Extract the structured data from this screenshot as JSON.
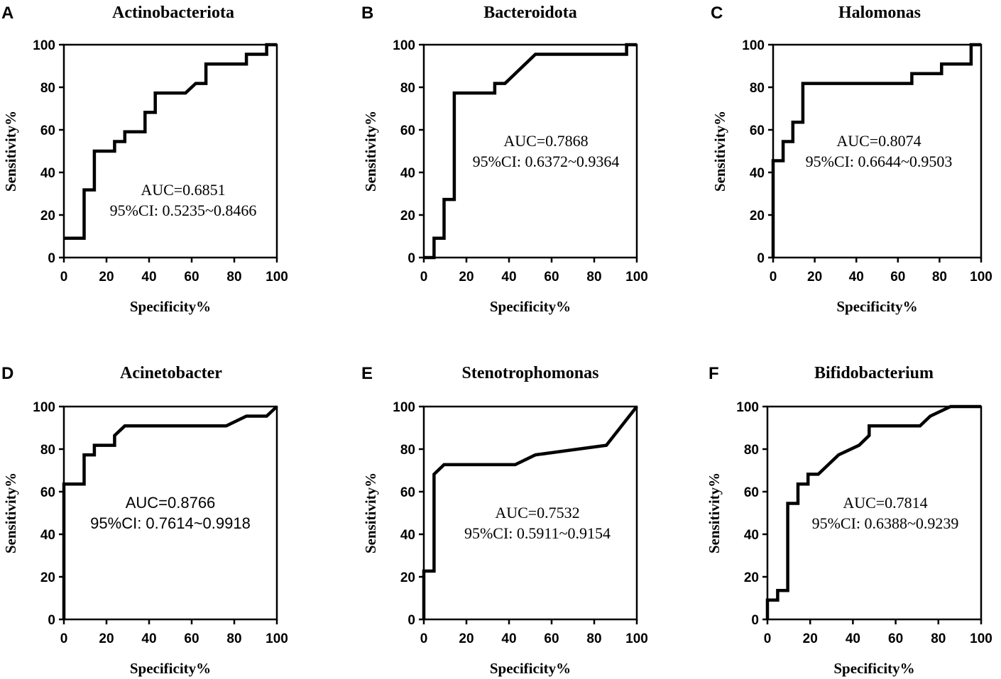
{
  "axis_ticks": [
    "0",
    "20",
    "40",
    "60",
    "80",
    "100"
  ],
  "chart_data": [
    {
      "panel": "A",
      "type": "line",
      "title": "Actinobacteriota",
      "xlabel": "Specificity%",
      "ylabel": "Sensitivity%",
      "xlim": [
        0,
        100
      ],
      "ylim": [
        0,
        100
      ],
      "auc_text": "AUC=0.6851",
      "ci_text": "95%CI: 0.5235~0.8466",
      "annotation_font": "serif",
      "x": [
        0,
        9.5,
        9.5,
        14.3,
        14.3,
        23.8,
        23.8,
        28.6,
        28.6,
        38.1,
        38.1,
        42.9,
        42.9,
        57.1,
        57.1,
        61.9,
        61.9,
        66.7,
        66.7,
        85.7,
        85.7,
        95.2,
        95.2,
        100
      ],
      "y": [
        9.1,
        9.1,
        31.8,
        31.8,
        50,
        50,
        54.5,
        54.5,
        59.1,
        59.1,
        68.2,
        68.2,
        77.3,
        77.3,
        77.3,
        81.8,
        81.8,
        81.8,
        90.9,
        90.9,
        95.5,
        95.5,
        100,
        100
      ]
    },
    {
      "panel": "B",
      "type": "line",
      "title": "Bacteroidota",
      "xlabel": "Specificity%",
      "ylabel": "Sensitivity%",
      "xlim": [
        0,
        100
      ],
      "ylim": [
        0,
        100
      ],
      "auc_text": "AUC=0.7868",
      "ci_text": "95%CI: 0.6372~0.9364",
      "annotation_font": "serif",
      "x": [
        0,
        4.8,
        4.8,
        9.5,
        9.5,
        14.3,
        14.3,
        33.3,
        33.3,
        38.1,
        52.4,
        95.2,
        95.2,
        100
      ],
      "y": [
        0,
        0,
        9.1,
        9.1,
        27.3,
        27.3,
        77.3,
        77.3,
        81.8,
        81.8,
        95.5,
        95.5,
        100,
        100
      ]
    },
    {
      "panel": "C",
      "type": "line",
      "title": "Halomonas",
      "xlabel": "Specificity%",
      "ylabel": "Sensitivity%",
      "xlim": [
        0,
        100
      ],
      "ylim": [
        0,
        100
      ],
      "auc_text": "AUC=0.8074",
      "ci_text": "95%CI: 0.6644~0.9503",
      "annotation_font": "serif",
      "x": [
        0,
        0,
        4.8,
        4.8,
        9.5,
        9.5,
        14.3,
        14.3,
        66.7,
        66.7,
        81,
        81,
        95.2,
        95.2,
        100
      ],
      "y": [
        0,
        45.5,
        45.5,
        54.5,
        54.5,
        63.6,
        63.6,
        81.8,
        81.8,
        86.4,
        86.4,
        90.9,
        90.9,
        100,
        100
      ]
    },
    {
      "panel": "D",
      "type": "line",
      "title": "Acinetobacter",
      "xlabel": "Specificity%",
      "ylabel": "Sensitivity%",
      "xlim": [
        0,
        100
      ],
      "ylim": [
        0,
        100
      ],
      "auc_text": "AUC=0.8766",
      "ci_text": "95%CI: 0.7614~0.9918",
      "annotation_font": "sans",
      "x": [
        0,
        0,
        9.5,
        9.5,
        14.3,
        14.3,
        23.8,
        23.8,
        28.6,
        76.2,
        85.7,
        95.2,
        100
      ],
      "y": [
        0,
        63.6,
        63.6,
        77.3,
        77.3,
        81.8,
        81.8,
        86.4,
        90.9,
        90.9,
        95.5,
        95.5,
        100
      ]
    },
    {
      "panel": "E",
      "type": "line",
      "title": "Stenotrophomonas",
      "xlabel": "Specificity%",
      "ylabel": "Sensitivity%",
      "xlim": [
        0,
        100
      ],
      "ylim": [
        0,
        100
      ],
      "auc_text": "AUC=0.7532",
      "ci_text": "95%CI: 0.5911~0.9154",
      "annotation_font": "serif",
      "x": [
        0,
        0,
        4.8,
        4.8,
        9.5,
        42.9,
        52.4,
        85.7,
        100
      ],
      "y": [
        0,
        22.7,
        22.7,
        68.2,
        72.7,
        72.7,
        77.3,
        81.8,
        100
      ]
    },
    {
      "panel": "F",
      "type": "line",
      "title": "Bifidobacterium",
      "xlabel": "Specificity%",
      "ylabel": "Sensitivity%",
      "xlim": [
        0,
        100
      ],
      "ylim": [
        0,
        100
      ],
      "auc_text": "AUC=0.7814",
      "ci_text": "95%CI: 0.6388~0.9239",
      "annotation_font": "serif",
      "x": [
        0,
        0,
        4.8,
        4.8,
        9.5,
        9.5,
        14.3,
        14.3,
        19,
        19,
        23.8,
        33.3,
        42.9,
        47.6,
        47.6,
        71.4,
        76.2,
        85.7,
        100
      ],
      "y": [
        0,
        9.1,
        9.1,
        13.6,
        13.6,
        54.5,
        54.5,
        63.6,
        63.6,
        68.2,
        68.2,
        77.3,
        81.8,
        86.4,
        90.9,
        90.9,
        95.5,
        100,
        100
      ]
    }
  ]
}
